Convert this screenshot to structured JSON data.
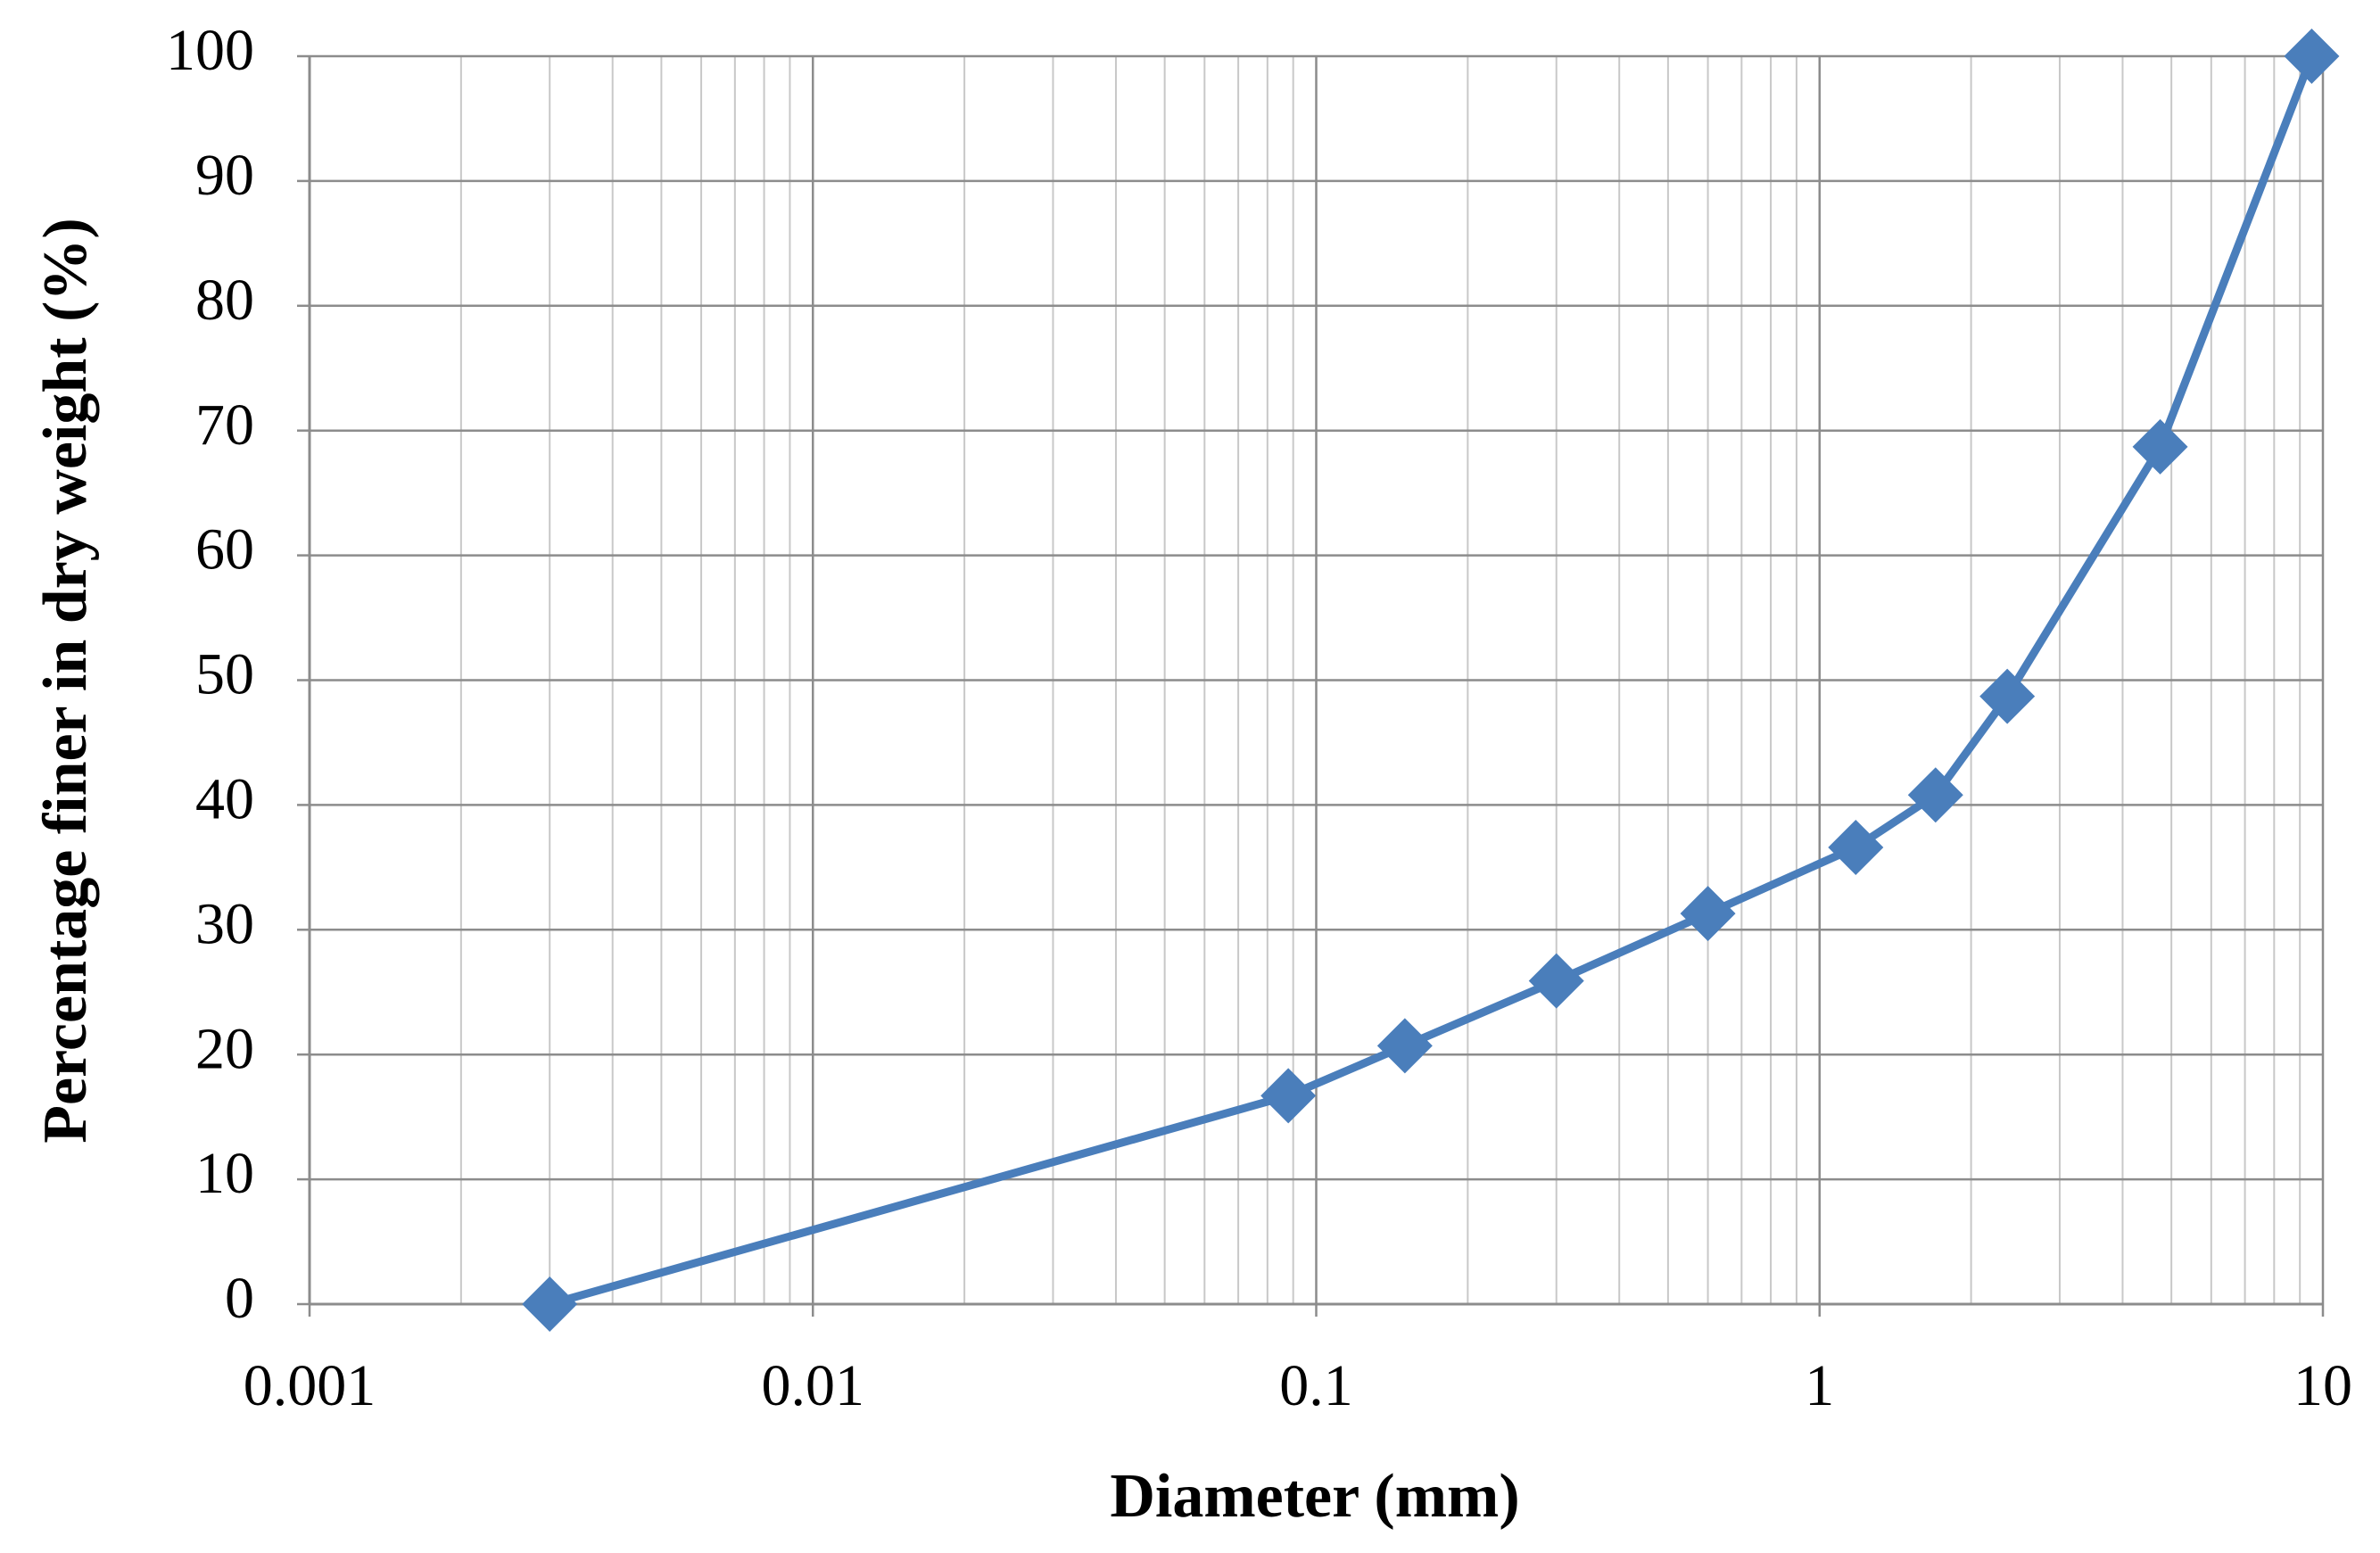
{
  "chart_data": {
    "type": "line",
    "x_label": "Diameter (mm)",
    "y_label": "Percentage finer in dry  weight (%)",
    "x": [
      0.003,
      0.088,
      0.15,
      0.3,
      0.6,
      1.18,
      1.7,
      2.36,
      4.75,
      9.5
    ],
    "series": [
      {
        "color": "#4a7ebb",
        "values": [
          0,
          16.7,
          20.7,
          25.9,
          31.3,
          36.6,
          40.8,
          48.7,
          68.7,
          100
        ]
      }
    ],
    "xlim": [
      0.001,
      10
    ],
    "xticks": [
      0.001,
      0.01,
      0.1,
      1,
      10
    ],
    "xscale": "log",
    "ylim": [
      0,
      100
    ],
    "yticks": [
      0,
      10,
      20,
      30,
      40,
      50,
      60,
      70,
      80,
      90,
      100
    ],
    "grid": true,
    "marker": "diamond"
  }
}
